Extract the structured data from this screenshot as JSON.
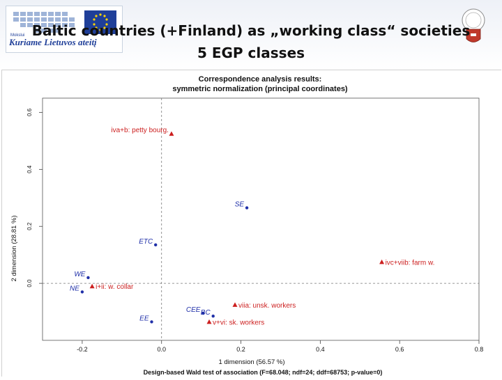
{
  "slide": {
    "title_line1": "Baltic countries (+Finland) as „working class“ societies",
    "title_line2": "5 EGP classes"
  },
  "logos": {
    "left_small": "Mokslui",
    "left_tagline": "Kuriame Lietuvos ateitį",
    "left_flag_color": "#1f3f99",
    "right_shield_color": "#c0392b"
  },
  "chart_data": {
    "type": "scatter",
    "title": "Correspondence analysis results:",
    "subtitle": "symmetric normalization (principal coordinates)",
    "xlabel": "1 dimension (56.57 %)",
    "ylabel": "2 dimension (28.81 %)",
    "note": "Design-based Wald test of association (F=68.048; ndf=24; ddf=68753; p-value=0)",
    "xlim": [
      -0.3,
      0.8
    ],
    "ylim": [
      -0.2,
      0.65
    ],
    "xticks": [
      "-0.2",
      "0.0",
      "0.2",
      "0.4",
      "0.6",
      "0.8"
    ],
    "yticks": [
      "0.0",
      "0.2",
      "0.4",
      "0.6"
    ],
    "xtick_values": [
      -0.2,
      0.0,
      0.2,
      0.4,
      0.6,
      0.8
    ],
    "ytick_values": [
      0.0,
      0.2,
      0.4,
      0.6
    ],
    "grid": false,
    "reference_lines": {
      "x": 0.0,
      "y": 0.0
    },
    "colors": {
      "countries": "#1f2fa8",
      "classes": "#cc1f1f"
    },
    "series": [
      {
        "group": "countries",
        "marker": "dot",
        "points": [
          {
            "label": "SE",
            "x": 0.215,
            "y": 0.265
          },
          {
            "label": "ETC",
            "x": -0.015,
            "y": 0.135
          },
          {
            "label": "WE",
            "x": -0.185,
            "y": 0.02
          },
          {
            "label": "NE",
            "x": -0.2,
            "y": -0.03
          },
          {
            "label": "CEE",
            "x": 0.105,
            "y": -0.105
          },
          {
            "label": "BC",
            "x": 0.13,
            "y": -0.115
          },
          {
            "label": "EE",
            "x": -0.025,
            "y": -0.135
          }
        ]
      },
      {
        "group": "classes",
        "marker": "triangle",
        "points": [
          {
            "label": "iva+b: petty bourg.",
            "x": 0.025,
            "y": 0.525
          },
          {
            "label": "ivc+viib: farm w.",
            "x": 0.555,
            "y": 0.075
          },
          {
            "label": "i+ii: w. collar",
            "x": -0.175,
            "y": -0.01
          },
          {
            "label": "viia: unsk. workers",
            "x": 0.185,
            "y": -0.075
          },
          {
            "label": "v+vi: sk. workers",
            "x": 0.12,
            "y": -0.135
          }
        ]
      }
    ]
  }
}
